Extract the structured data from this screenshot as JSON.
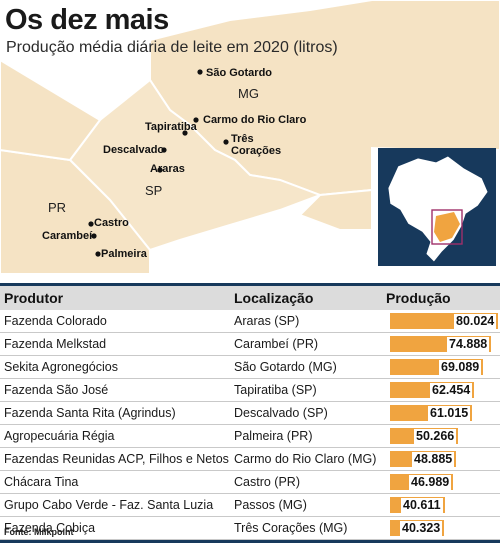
{
  "header": {
    "title": "Os dez mais",
    "subtitle": "Produção média diária de leite em 2020 (litros)"
  },
  "map": {
    "regions": {
      "mg": "MG",
      "sp": "SP",
      "pr": "PR"
    },
    "cities": [
      {
        "name": "São Gotardo"
      },
      {
        "name": "Carmo do Rio Claro"
      },
      {
        "name": "Tapiratiba"
      },
      {
        "name": "Três Corações"
      },
      {
        "name": "Descalvado"
      },
      {
        "name": "Araras"
      },
      {
        "name": "Castro"
      },
      {
        "name": "Carambeí"
      },
      {
        "name": "Palmeira"
      }
    ],
    "colors": {
      "land": "#f5e3c4",
      "border": "#ffffff",
      "inset_bg": "#17395c",
      "inset_land": "#ffffff",
      "inset_highlight": "#f0a440"
    }
  },
  "table": {
    "headers": {
      "produtor": "Produtor",
      "localizacao": "Localização",
      "producao": "Produção"
    },
    "bar_color": "#f0a440",
    "header_bg": "#dcdcdc"
  },
  "chart_data": {
    "type": "bar",
    "title": "Os dez mais",
    "subtitle": "Produção média diária de leite em 2020 (litros)",
    "categories": [
      "Fazenda Colorado",
      "Fazenda Melkstad",
      "Sekita Agronegócios",
      "Fazenda São José",
      "Fazenda Santa Rita (Agrindus)",
      "Agropecuária Régia",
      "Fazendas Reunidas ACP, Filhos e Netos",
      "Chácara Tina",
      "Grupo Cabo Verde - Faz. Santa Luzia",
      "Fazenda Cobiça"
    ],
    "locations": [
      "Araras (SP)",
      "Carambeí (PR)",
      "São Gotardo (MG)",
      "Tapiratiba (SP)",
      "Descalvado (SP)",
      "Palmeira (PR)",
      "Carmo do Rio Claro (MG)",
      "Castro (PR)",
      "Passos (MG)",
      "Três Corações (MG)"
    ],
    "values": [
      80024,
      74888,
      69089,
      62454,
      61015,
      50266,
      48885,
      46989,
      40611,
      40323
    ],
    "value_labels": [
      "80.024",
      "74.888",
      "69.089",
      "62.454",
      "61.015",
      "50.266",
      "48.885",
      "46.989",
      "40.611",
      "40.323"
    ],
    "xlim": [
      0,
      80024
    ]
  },
  "source": "Fonte: Milkpoint"
}
